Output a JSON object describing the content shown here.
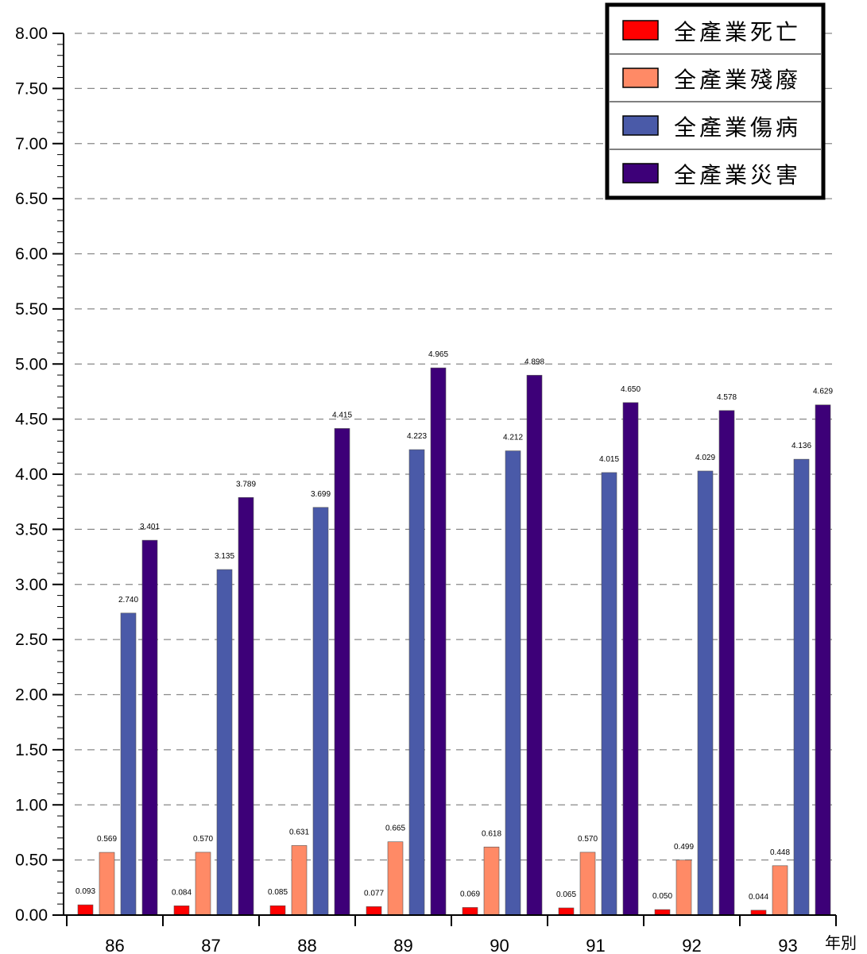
{
  "chart_data": {
    "type": "bar",
    "categories": [
      "86",
      "87",
      "88",
      "89",
      "90",
      "91",
      "92",
      "93"
    ],
    "series": [
      {
        "name": "全產業死亡",
        "color": "#ff0000",
        "values": [
          0.093,
          0.084,
          0.085,
          0.077,
          0.069,
          0.065,
          0.05,
          0.044
        ],
        "labels": [
          "0.093",
          "0.084",
          "0.085",
          "0.077",
          "0.069",
          "0.065",
          "0.050",
          "0.044"
        ]
      },
      {
        "name": "全產業殘廢",
        "color": "#ff8a66",
        "values": [
          0.569,
          0.57,
          0.631,
          0.665,
          0.618,
          0.57,
          0.499,
          0.448
        ],
        "labels": [
          "0.569",
          "0.570",
          "0.631",
          "0.665",
          "0.618",
          "0.570",
          "0.499",
          "0.448"
        ]
      },
      {
        "name": "全產業傷病",
        "color": "#4a5aa8",
        "values": [
          2.74,
          3.135,
          3.699,
          4.223,
          4.212,
          4.015,
          4.029,
          4.136
        ],
        "labels": [
          "2.740",
          "3.135",
          "3.699",
          "4.223",
          "4.212",
          "4.015",
          "4.029",
          "4.136"
        ]
      },
      {
        "name": "全產業災害",
        "color": "#3d0078",
        "values": [
          3.401,
          3.789,
          4.415,
          4.965,
          4.898,
          4.65,
          4.578,
          4.629
        ],
        "labels": [
          "3.401",
          "3.789",
          "4.415",
          "4.965",
          "4.898",
          "4.650",
          "4.578",
          "4.629"
        ]
      }
    ],
    "yticks": [
      "0.00",
      "0.50",
      "1.00",
      "1.50",
      "2.00",
      "2.50",
      "3.00",
      "3.50",
      "4.00",
      "4.50",
      "5.00",
      "5.50",
      "6.00",
      "6.50",
      "7.00",
      "7.50",
      "8.00"
    ],
    "ylim": [
      0,
      8
    ],
    "xlabel": "年別",
    "ylabel": "",
    "title": "",
    "grid": "dashed-horizontal",
    "legend_position": "top-right"
  }
}
